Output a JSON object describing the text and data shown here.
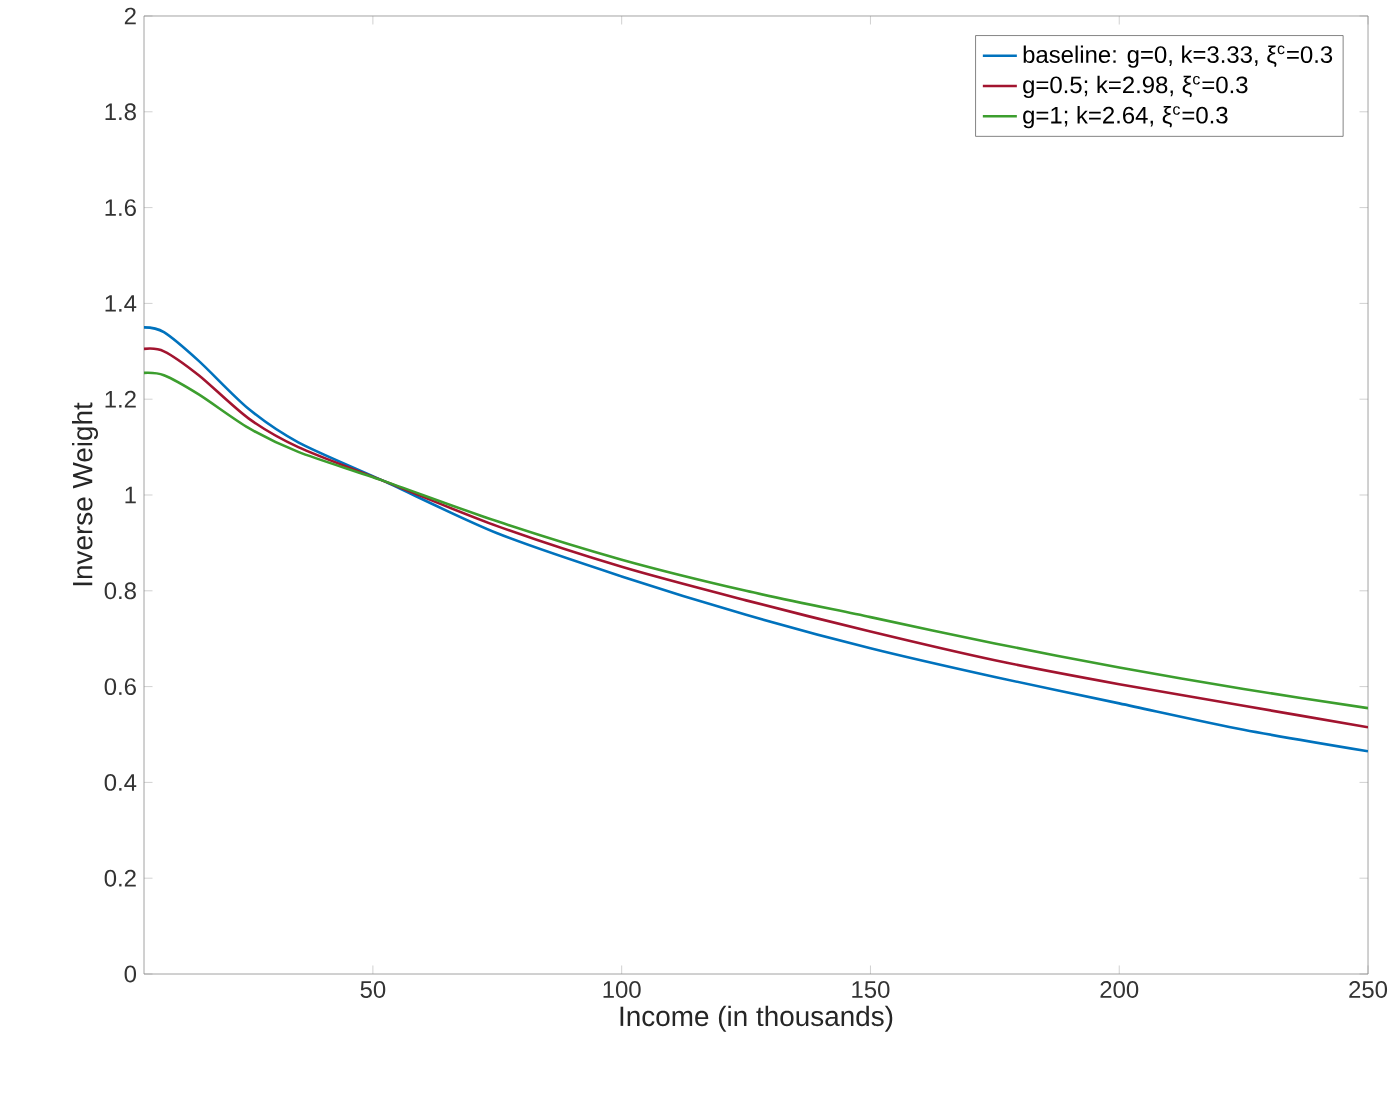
{
  "chart_data": {
    "type": "line",
    "xlabel": "Income (in thousands)",
    "ylabel": "Inverse Weight",
    "xlim": [
      4,
      250
    ],
    "xticks": [
      50,
      100,
      150,
      200,
      250
    ],
    "ylim": [
      0,
      2
    ],
    "yticks": [
      0,
      0.2,
      0.4,
      0.6,
      0.8,
      1,
      1.2,
      1.4,
      1.6,
      1.8,
      2
    ],
    "x": [
      4,
      8,
      15,
      25,
      35,
      52,
      75,
      100,
      125,
      150,
      175,
      200,
      225,
      250
    ],
    "grid": false,
    "legend": "top right",
    "marker": "none",
    "line_style": "solid",
    "series": [
      {
        "name": "baseline: g=0, k=3.33, ξ$^{c}$=0.3",
        "color": "#0072bd",
        "values": [
          1.35,
          1.34,
          1.28,
          1.18,
          1.11,
          1.03,
          0.92,
          0.83,
          0.75,
          0.68,
          0.62,
          0.565,
          0.51,
          0.465
        ]
      },
      {
        "name": "g=0.5; k=2.98, ξ$^{c}$=0.3",
        "color": "#a2142f",
        "values": [
          1.305,
          1.3,
          1.25,
          1.16,
          1.1,
          1.03,
          0.935,
          0.85,
          0.78,
          0.715,
          0.655,
          0.605,
          0.56,
          0.515
        ]
      },
      {
        "name": "g=1; k=2.64, ξ$^{c}$=0.3",
        "color": "#3c9e2e",
        "values": [
          1.255,
          1.25,
          1.21,
          1.14,
          1.09,
          1.03,
          0.945,
          0.865,
          0.8,
          0.745,
          0.69,
          0.64,
          0.595,
          0.555
        ]
      }
    ]
  }
}
